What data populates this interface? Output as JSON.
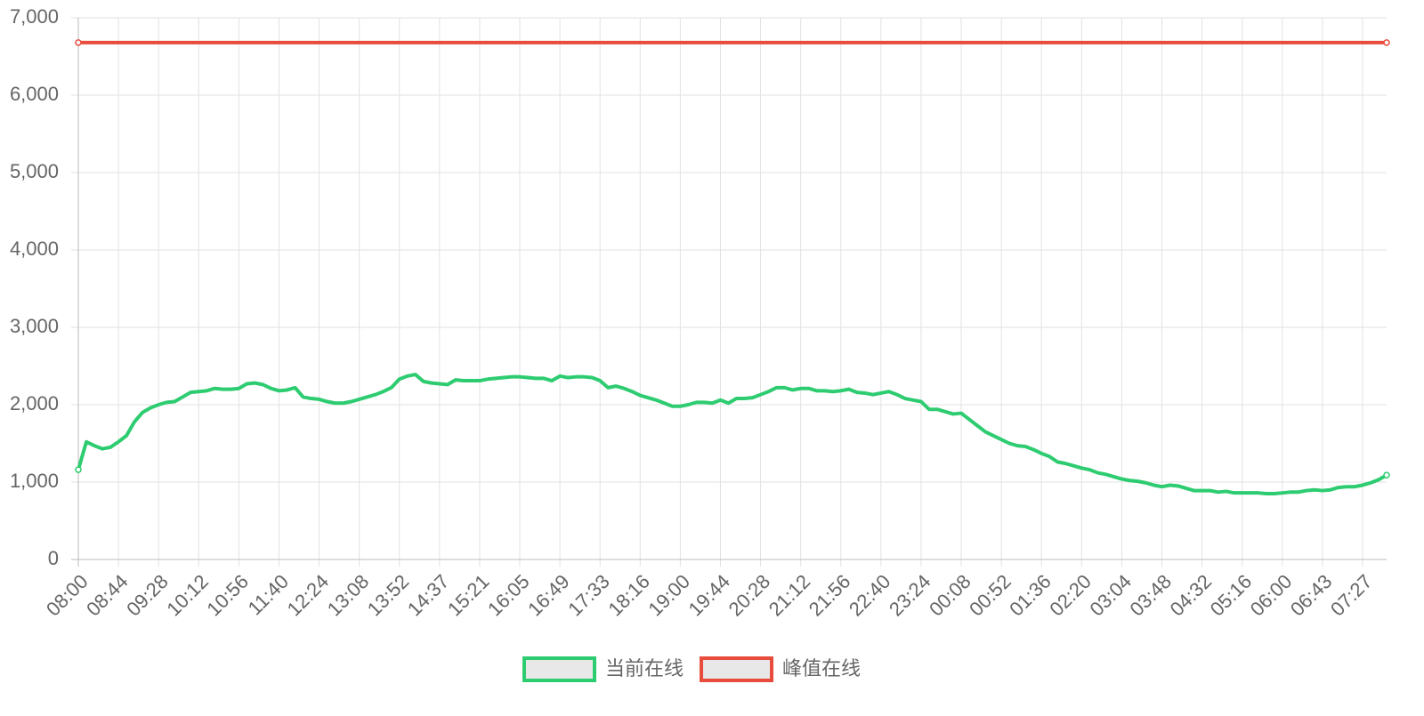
{
  "chart_data": {
    "type": "line",
    "categories": [
      "08:00",
      null,
      null,
      null,
      null,
      "08:44",
      null,
      null,
      null,
      null,
      "09:28",
      null,
      null,
      null,
      null,
      "10:12",
      null,
      null,
      null,
      null,
      "10:56",
      null,
      null,
      null,
      null,
      "11:40",
      null,
      null,
      null,
      null,
      "12:24",
      null,
      null,
      null,
      null,
      "13:08",
      null,
      null,
      null,
      null,
      "13:52",
      null,
      null,
      null,
      null,
      "14:37",
      null,
      null,
      null,
      null,
      "15:21",
      null,
      null,
      null,
      null,
      "16:05",
      null,
      null,
      null,
      null,
      "16:49",
      null,
      null,
      null,
      null,
      "17:33",
      null,
      null,
      null,
      null,
      "18:16",
      null,
      null,
      null,
      null,
      "19:00",
      null,
      null,
      null,
      null,
      "19:44",
      null,
      null,
      null,
      null,
      "20:28",
      null,
      null,
      null,
      null,
      "21:12",
      null,
      null,
      null,
      null,
      "21:56",
      null,
      null,
      null,
      null,
      "22:40",
      null,
      null,
      null,
      null,
      "23:24",
      null,
      null,
      null,
      null,
      "00:08",
      null,
      null,
      null,
      null,
      "00:52",
      null,
      null,
      null,
      null,
      "01:36",
      null,
      null,
      null,
      null,
      "02:20",
      null,
      null,
      null,
      null,
      "03:04",
      null,
      null,
      null,
      null,
      "03:48",
      null,
      null,
      null,
      null,
      "04:32",
      null,
      null,
      null,
      null,
      "05:16",
      null,
      null,
      null,
      null,
      "06:00",
      null,
      null,
      null,
      null,
      "06:43",
      null,
      null,
      null,
      null,
      "07:27",
      null,
      null,
      null
    ],
    "series": [
      {
        "name": "当前在线",
        "color": "#2ecc71",
        "values": [
          1160,
          1520,
          1470,
          1430,
          1450,
          1520,
          1600,
          1780,
          1900,
          1960,
          2000,
          2030,
          2040,
          2100,
          2160,
          2170,
          2180,
          2210,
          2200,
          2200,
          2210,
          2270,
          2280,
          2260,
          2210,
          2180,
          2190,
          2220,
          2100,
          2080,
          2070,
          2040,
          2020,
          2020,
          2040,
          2070,
          2100,
          2130,
          2170,
          2220,
          2330,
          2370,
          2390,
          2300,
          2280,
          2270,
          2260,
          2320,
          2310,
          2310,
          2310,
          2330,
          2340,
          2350,
          2360,
          2360,
          2350,
          2340,
          2340,
          2310,
          2370,
          2350,
          2360,
          2360,
          2350,
          2310,
          2220,
          2240,
          2210,
          2170,
          2120,
          2090,
          2060,
          2020,
          1980,
          1980,
          2000,
          2030,
          2030,
          2020,
          2060,
          2020,
          2080,
          2080,
          2090,
          2130,
          2170,
          2220,
          2220,
          2190,
          2210,
          2210,
          2180,
          2180,
          2170,
          2180,
          2200,
          2160,
          2150,
          2130,
          2150,
          2170,
          2130,
          2080,
          2060,
          2040,
          1940,
          1940,
          1910,
          1880,
          1890,
          1810,
          1730,
          1650,
          1600,
          1550,
          1500,
          1470,
          1460,
          1420,
          1370,
          1330,
          1260,
          1240,
          1210,
          1180,
          1160,
          1120,
          1100,
          1070,
          1040,
          1020,
          1010,
          990,
          960,
          940,
          960,
          950,
          920,
          890,
          890,
          890,
          870,
          880,
          860,
          860,
          860,
          860,
          850,
          850,
          860,
          870,
          870,
          890,
          900,
          890,
          900,
          930,
          940,
          940,
          960,
          990,
          1030,
          1090
        ]
      },
      {
        "name": "峰值在线",
        "color": "#e74c3c",
        "values": [
          6680,
          6680,
          6680,
          6680,
          6680,
          6680,
          6680,
          6680,
          6680,
          6680,
          6680,
          6680,
          6680,
          6680,
          6680,
          6680,
          6680,
          6680,
          6680,
          6680,
          6680,
          6680,
          6680,
          6680,
          6680,
          6680,
          6680,
          6680,
          6680,
          6680,
          6680,
          6680,
          6680,
          6680,
          6680,
          6680,
          6680,
          6680,
          6680,
          6680,
          6680,
          6680,
          6680,
          6680,
          6680,
          6680,
          6680,
          6680,
          6680,
          6680,
          6680,
          6680,
          6680,
          6680,
          6680,
          6680,
          6680,
          6680,
          6680,
          6680,
          6680,
          6680,
          6680,
          6680,
          6680,
          6680,
          6680,
          6680,
          6680,
          6680,
          6680,
          6680,
          6680,
          6680,
          6680,
          6680,
          6680,
          6680,
          6680,
          6680,
          6680,
          6680,
          6680,
          6680,
          6680,
          6680,
          6680,
          6680,
          6680,
          6680,
          6680,
          6680,
          6680,
          6680,
          6680,
          6680,
          6680,
          6680,
          6680,
          6680,
          6680,
          6680,
          6680,
          6680,
          6680,
          6680,
          6680,
          6680,
          6680,
          6680,
          6680,
          6680,
          6680,
          6680,
          6680,
          6680,
          6680,
          6680,
          6680,
          6680,
          6680,
          6680,
          6680,
          6680,
          6680,
          6680,
          6680,
          6680,
          6680,
          6680,
          6680,
          6680,
          6680,
          6680,
          6680,
          6680,
          6680,
          6680,
          6680,
          6680,
          6680,
          6680,
          6680,
          6680,
          6680,
          6680,
          6680,
          6680,
          6680,
          6680,
          6680,
          6680,
          6680,
          6680,
          6680,
          6680,
          6680,
          6680,
          6680,
          6680,
          6680,
          6680,
          6680,
          6680
        ]
      }
    ],
    "ylim": [
      0,
      7000
    ],
    "yticks": [
      0,
      {
        "value": 1000,
        "label": "1,000"
      },
      {
        "value": 2000,
        "label": "2,000"
      },
      {
        "value": 3000,
        "label": "3,000"
      },
      {
        "value": 4000,
        "label": "4,000"
      },
      {
        "value": 5000,
        "label": "5,000"
      },
      {
        "value": 6000,
        "label": "6,000"
      },
      {
        "value": 7000,
        "label": "7,000"
      }
    ],
    "grid": true,
    "legend": "bottom"
  }
}
